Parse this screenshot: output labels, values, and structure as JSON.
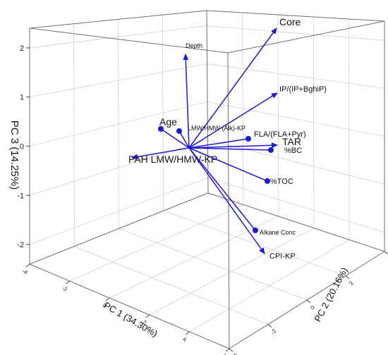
{
  "chart_data": {
    "type": "scatter",
    "projection": "3d-biplot",
    "title": "",
    "grid": true,
    "axes": {
      "x": {
        "label": "PC 1 (34.30%)",
        "ticks": [
          "-4",
          "-2",
          "0",
          "2",
          "4",
          "6"
        ],
        "range": [
          -4,
          6
        ]
      },
      "y": {
        "label": "PC 2 (20.16%)",
        "ticks": [
          "-4",
          "-2",
          "0",
          "2",
          "4"
        ],
        "range": [
          -4,
          4
        ]
      },
      "z": {
        "label": "PC 3 (14.25%)",
        "ticks": [
          "-2",
          "-1",
          "0",
          "1",
          "2"
        ],
        "range": [
          -2.4,
          2.4
        ]
      }
    },
    "vectors_color": "#1a1ad4",
    "vectors": [
      {
        "name": "Core",
        "head": "arrow",
        "label_size": "large"
      },
      {
        "name": "Depth",
        "head": "arrow",
        "label_size": "small"
      },
      {
        "name": "IP/(IP+BghiP)",
        "head": "arrow",
        "label_size": "medium"
      },
      {
        "name": "Age",
        "head": "point",
        "label_size": "large"
      },
      {
        "name": "LMW/HMW (Alk)-KP",
        "head": "point",
        "label_size": "small"
      },
      {
        "name": "FLA/(FLA+Pyr)",
        "head": "point",
        "label_size": "medium"
      },
      {
        "name": "TAR",
        "head": "arrow",
        "label_size": "large"
      },
      {
        "name": "%BC",
        "head": "point",
        "label_size": "medium"
      },
      {
        "name": "PAH LMW/HMW-KP",
        "head": "arrow",
        "label_size": "large"
      },
      {
        "name": "%TOC",
        "head": "point",
        "label_size": "medium"
      },
      {
        "name": "Alkane Conc",
        "head": "point",
        "label_size": "small"
      },
      {
        "name": "CPI-KP",
        "head": "arrow",
        "label_size": "medium"
      }
    ]
  }
}
